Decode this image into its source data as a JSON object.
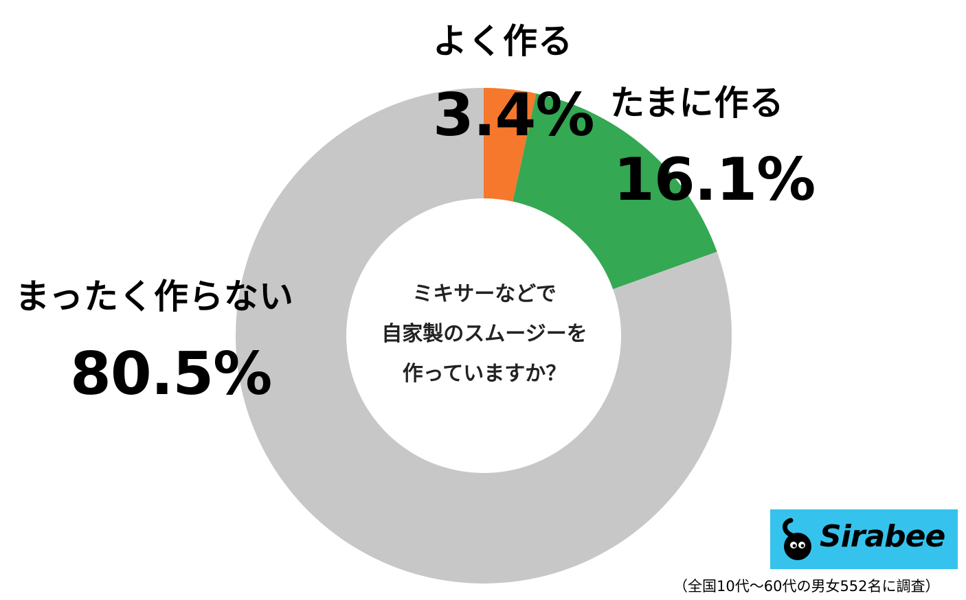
{
  "chart_data": {
    "type": "pie",
    "donut": true,
    "question_lines": [
      "ミキサーなどで",
      "自家製のスムージーを",
      "作っていますか？"
    ],
    "categories": [
      "よく作る",
      "たまに作る",
      "まったく作らない"
    ],
    "values": [
      3.4,
      16.1,
      80.5
    ],
    "value_labels": [
      "3.4%",
      "16.1%",
      "80.5%"
    ],
    "colors": [
      "#f5782d",
      "#34a853",
      "#c8c7c8"
    ],
    "start_angle": "12 o'clock",
    "direction": "clockwise"
  },
  "footnote": "（全国10代〜60代の男女552名に調査）",
  "logo": {
    "text": "Sirabee",
    "background": "#35c3ee"
  }
}
